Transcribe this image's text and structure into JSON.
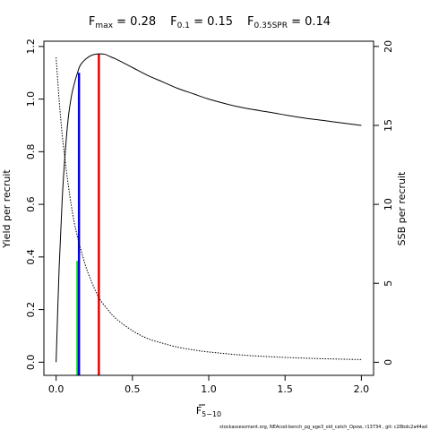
{
  "chart_data": {
    "type": "line",
    "title_parts": [
      {
        "base": "F",
        "sub": "max",
        "value": " = 0.28"
      },
      {
        "base": "F",
        "sub": "0.1",
        "value": " = 0.15"
      },
      {
        "base": "F",
        "sub": "0.35SPR",
        "value": " = 0.14"
      }
    ],
    "xlabel": {
      "base": "F",
      "sub": "5−10"
    },
    "ylabel_left": "Yield per recruit",
    "ylabel_right": "SSB per recruit",
    "xlim": [
      -0.08,
      2.08
    ],
    "ylim_left": [
      -0.05,
      1.22
    ],
    "ylim_right": [
      -0.83,
      20.33
    ],
    "x_ticks": [
      0,
      0.5,
      1,
      1.5,
      2
    ],
    "x_tick_labels": [
      "0.0",
      "0.5",
      "1.0",
      "1.5",
      "2.0"
    ],
    "y_left_ticks": [
      0,
      0.2,
      0.4,
      0.6,
      0.8,
      1.0,
      1.2
    ],
    "y_left_tick_labels": [
      "0.0",
      "0.2",
      "0.4",
      "0.6",
      "0.8",
      "1.0",
      "1.2"
    ],
    "y_right_ticks": [
      0,
      5,
      10,
      15,
      20
    ],
    "y_right_tick_labels": [
      "0",
      "5",
      "10",
      "15",
      "20"
    ],
    "series": [
      {
        "role": "yield-per-recruit",
        "axis": "left",
        "style": "solid",
        "color": "#000000",
        "x": [
          0,
          0.02,
          0.04,
          0.06,
          0.08,
          0.1,
          0.12,
          0.14,
          0.16,
          0.2,
          0.24,
          0.28,
          0.32,
          0.36,
          0.4,
          0.5,
          0.6,
          0.7,
          0.8,
          0.9,
          1.0,
          1.2,
          1.4,
          1.6,
          1.8,
          2.0
        ],
        "y": [
          0,
          0.36,
          0.62,
          0.8,
          0.93,
          1.01,
          1.06,
          1.1,
          1.13,
          1.155,
          1.168,
          1.172,
          1.17,
          1.16,
          1.15,
          1.12,
          1.09,
          1.065,
          1.04,
          1.02,
          1.0,
          0.97,
          0.95,
          0.93,
          0.915,
          0.9
        ]
      },
      {
        "role": "ssb-per-recruit",
        "axis": "right",
        "style": "dotted",
        "color": "#000000",
        "x": [
          0,
          0.02,
          0.04,
          0.06,
          0.08,
          0.1,
          0.12,
          0.14,
          0.16,
          0.2,
          0.25,
          0.28,
          0.3,
          0.35,
          0.4,
          0.5,
          0.6,
          0.7,
          0.8,
          0.9,
          1.0,
          1.2,
          1.4,
          1.6,
          1.8,
          2.0
        ],
        "y": [
          19.3,
          16.6,
          14.4,
          12.7,
          11.2,
          9.9,
          8.8,
          7.95,
          7.2,
          5.9,
          4.7,
          4.1,
          3.8,
          3.2,
          2.7,
          2.0,
          1.5,
          1.2,
          0.95,
          0.78,
          0.65,
          0.47,
          0.35,
          0.27,
          0.21,
          0.17
        ]
      }
    ],
    "reference_lines": [
      {
        "role": "F0.35SPR",
        "x": 0.14,
        "y_top": 0.385,
        "color": "#00dd00"
      },
      {
        "role": "F0.1",
        "x": 0.15,
        "y_top": 1.1,
        "color": "#0000ee"
      },
      {
        "role": "Fmax",
        "x": 0.28,
        "y_top": 1.172,
        "color": "#ee0000"
      }
    ],
    "footer": "stockassessment.org, NEAcod-bench_pg_age3_old_catch_Opow, r13734 , git: c28bdc2a44ad"
  }
}
